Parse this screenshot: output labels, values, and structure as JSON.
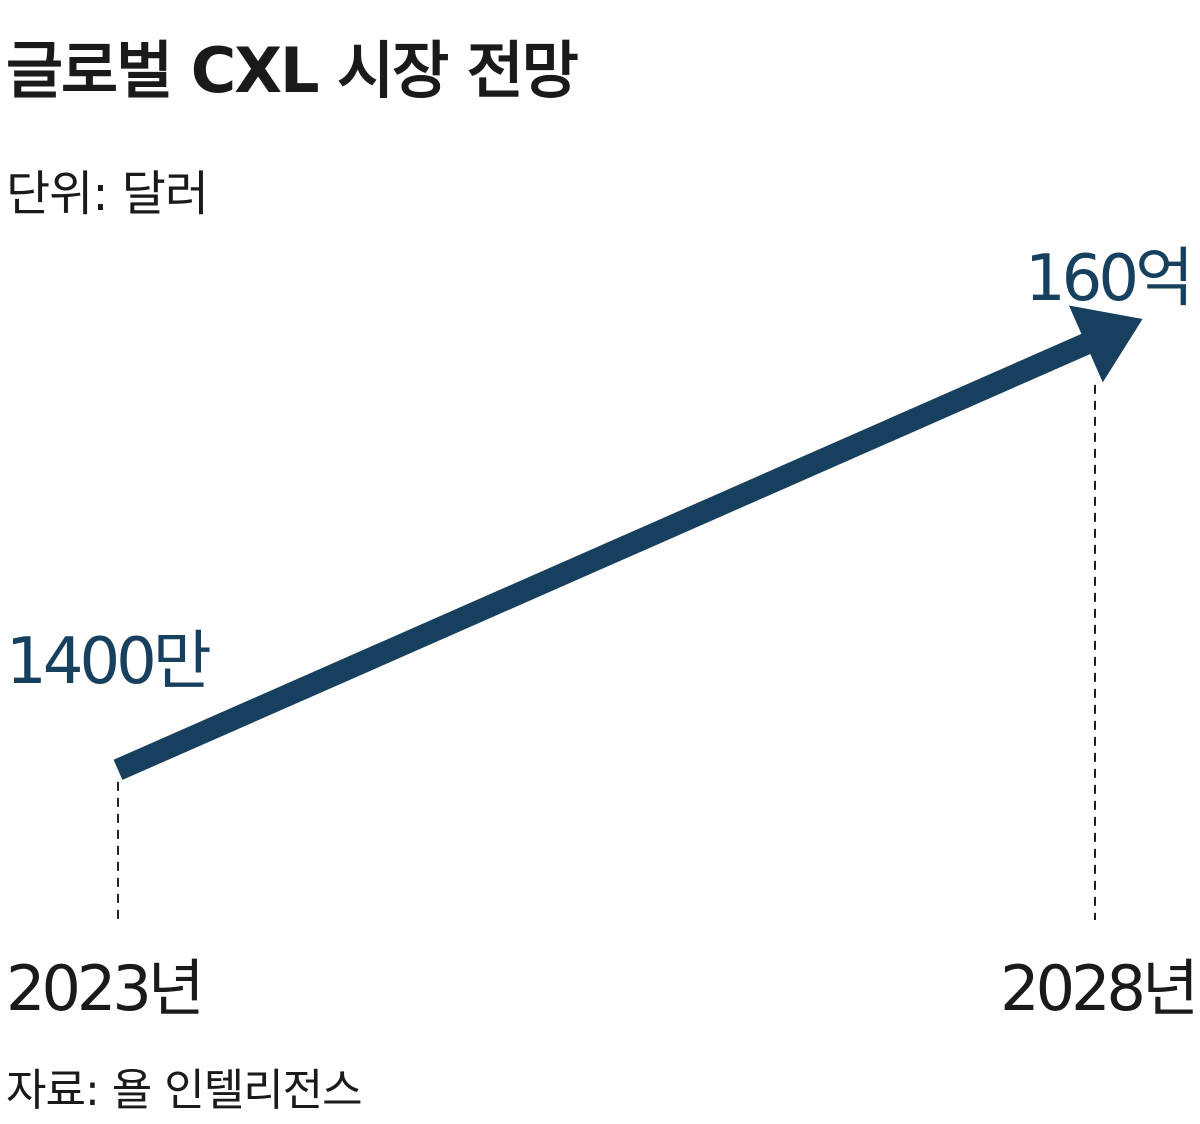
{
  "chart_data": {
    "type": "arrow",
    "title": "글로벌 CXL 시장 전망",
    "subtitle": "단위: 달러",
    "categories": [
      "2023년",
      "2028년"
    ],
    "values": [
      14000000,
      16000000000
    ],
    "value_labels": [
      "1400만",
      "160억"
    ],
    "color": "#17405f",
    "log_scale": true,
    "ylim": [
      1000000,
      100000000000
    ],
    "source": "자료: 욜 인텔리전스"
  }
}
